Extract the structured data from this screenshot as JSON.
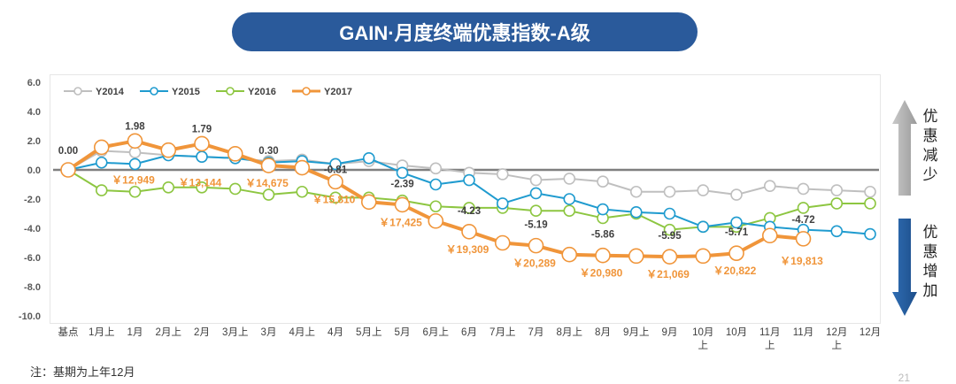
{
  "title": "GAIN·月度终端优惠指数-A级",
  "note": "注：基期为上年12月",
  "page_number": "21",
  "side_up": {
    "text": [
      "优",
      "惠",
      "减",
      "少"
    ]
  },
  "side_down": {
    "text": [
      "优",
      "惠",
      "增",
      "加"
    ]
  },
  "chart_data": {
    "type": "line",
    "categories": [
      "基点",
      "1月上",
      "1月",
      "2月上",
      "2月",
      "3月上",
      "3月",
      "4月上",
      "4月",
      "5月上",
      "5月",
      "6月上",
      "6月",
      "7月上",
      "7月",
      "8月上",
      "8月",
      "9月上",
      "9月",
      "10月上",
      "10月",
      "11月上",
      "11月",
      "12月上",
      "12月"
    ],
    "ylim": [
      -10,
      6
    ],
    "yticks": [
      6,
      4,
      2,
      0,
      -2,
      -4,
      -6,
      -8,
      -10
    ],
    "ytick_labels": [
      "6.0",
      "4.0",
      "2.0",
      "0.0",
      "-2.0",
      "-4.0",
      "-6.0",
      "-8.0",
      "-10.0"
    ],
    "legend_position": "top-left",
    "series": [
      {
        "name": "Y2014",
        "color": "#bfbfbf",
        "values": [
          0,
          1.3,
          1.2,
          1.0,
          0.9,
          0.8,
          0.6,
          0.7,
          0.4,
          0.6,
          0.3,
          0.1,
          -0.2,
          -0.3,
          -0.7,
          -0.6,
          -0.8,
          -1.5,
          -1.5,
          -1.4,
          -1.7,
          -1.1,
          -1.3,
          -1.4,
          -1.5
        ]
      },
      {
        "name": "Y2015",
        "color": "#1f9bcf",
        "values": [
          0,
          0.5,
          0.4,
          1.0,
          0.9,
          0.8,
          0.5,
          0.6,
          0.4,
          0.8,
          -0.2,
          -1.0,
          -0.7,
          -2.3,
          -1.6,
          -2.0,
          -2.7,
          -2.9,
          -3.0,
          -3.9,
          -3.6,
          -3.9,
          -4.1,
          -4.2,
          -4.4
        ]
      },
      {
        "name": "Y2016",
        "color": "#8dc641",
        "values": [
          0,
          -1.4,
          -1.5,
          -1.2,
          -1.2,
          -1.3,
          -1.7,
          -1.5,
          -1.9,
          -1.9,
          -2.1,
          -2.5,
          -2.6,
          -2.6,
          -2.8,
          -2.8,
          -3.3,
          -3.0,
          -4.1,
          -3.9,
          -3.9,
          -3.3,
          -2.6,
          -2.3,
          -2.3
        ]
      },
      {
        "name": "Y2017",
        "color": "#f0953a",
        "values": [
          0,
          1.55,
          1.98,
          1.35,
          1.79,
          1.1,
          0.3,
          0.15,
          -0.81,
          -2.2,
          -2.39,
          -3.5,
          -4.23,
          -5.0,
          -5.19,
          -5.8,
          -5.86,
          -5.9,
          -5.95,
          -5.9,
          -5.71,
          -4.5,
          -4.72,
          null,
          null
        ]
      }
    ],
    "value_labels": [
      {
        "index": 0,
        "series": "Y2017",
        "text": "0.00"
      },
      {
        "index": 2,
        "series": "Y2017",
        "text": "1.98"
      },
      {
        "index": 4,
        "series": "Y2017",
        "text": "1.79"
      },
      {
        "index": 6,
        "series": "Y2017",
        "text": "0.30"
      },
      {
        "index": 8,
        "series": "Y2017",
        "text": "-0.81"
      },
      {
        "index": 10,
        "series": "Y2017",
        "text": "-2.39"
      },
      {
        "index": 12,
        "series": "Y2017",
        "text": "-4.23"
      },
      {
        "index": 14,
        "series": "Y2017",
        "text": "-5.19"
      },
      {
        "index": 16,
        "series": "Y2017",
        "text": "-5.86"
      },
      {
        "index": 18,
        "series": "Y2017",
        "text": "-5.95"
      },
      {
        "index": 20,
        "series": "Y2017",
        "text": "-5.71"
      },
      {
        "index": 22,
        "series": "Y2017",
        "text": "-4.72"
      }
    ],
    "price_labels": [
      {
        "index": 2,
        "text": "￥12,949"
      },
      {
        "index": 4,
        "text": "￥13,144"
      },
      {
        "index": 6,
        "text": "￥14,675"
      },
      {
        "index": 8,
        "text": "￥15,810"
      },
      {
        "index": 10,
        "text": "￥17,425"
      },
      {
        "index": 12,
        "text": "￥19,309"
      },
      {
        "index": 14,
        "text": "￥20,289"
      },
      {
        "index": 16,
        "text": "￥20,980"
      },
      {
        "index": 18,
        "text": "￥21,069"
      },
      {
        "index": 20,
        "text": "￥20,822"
      },
      {
        "index": 22,
        "text": "￥19,813"
      }
    ],
    "price_color": "#f0953a"
  }
}
